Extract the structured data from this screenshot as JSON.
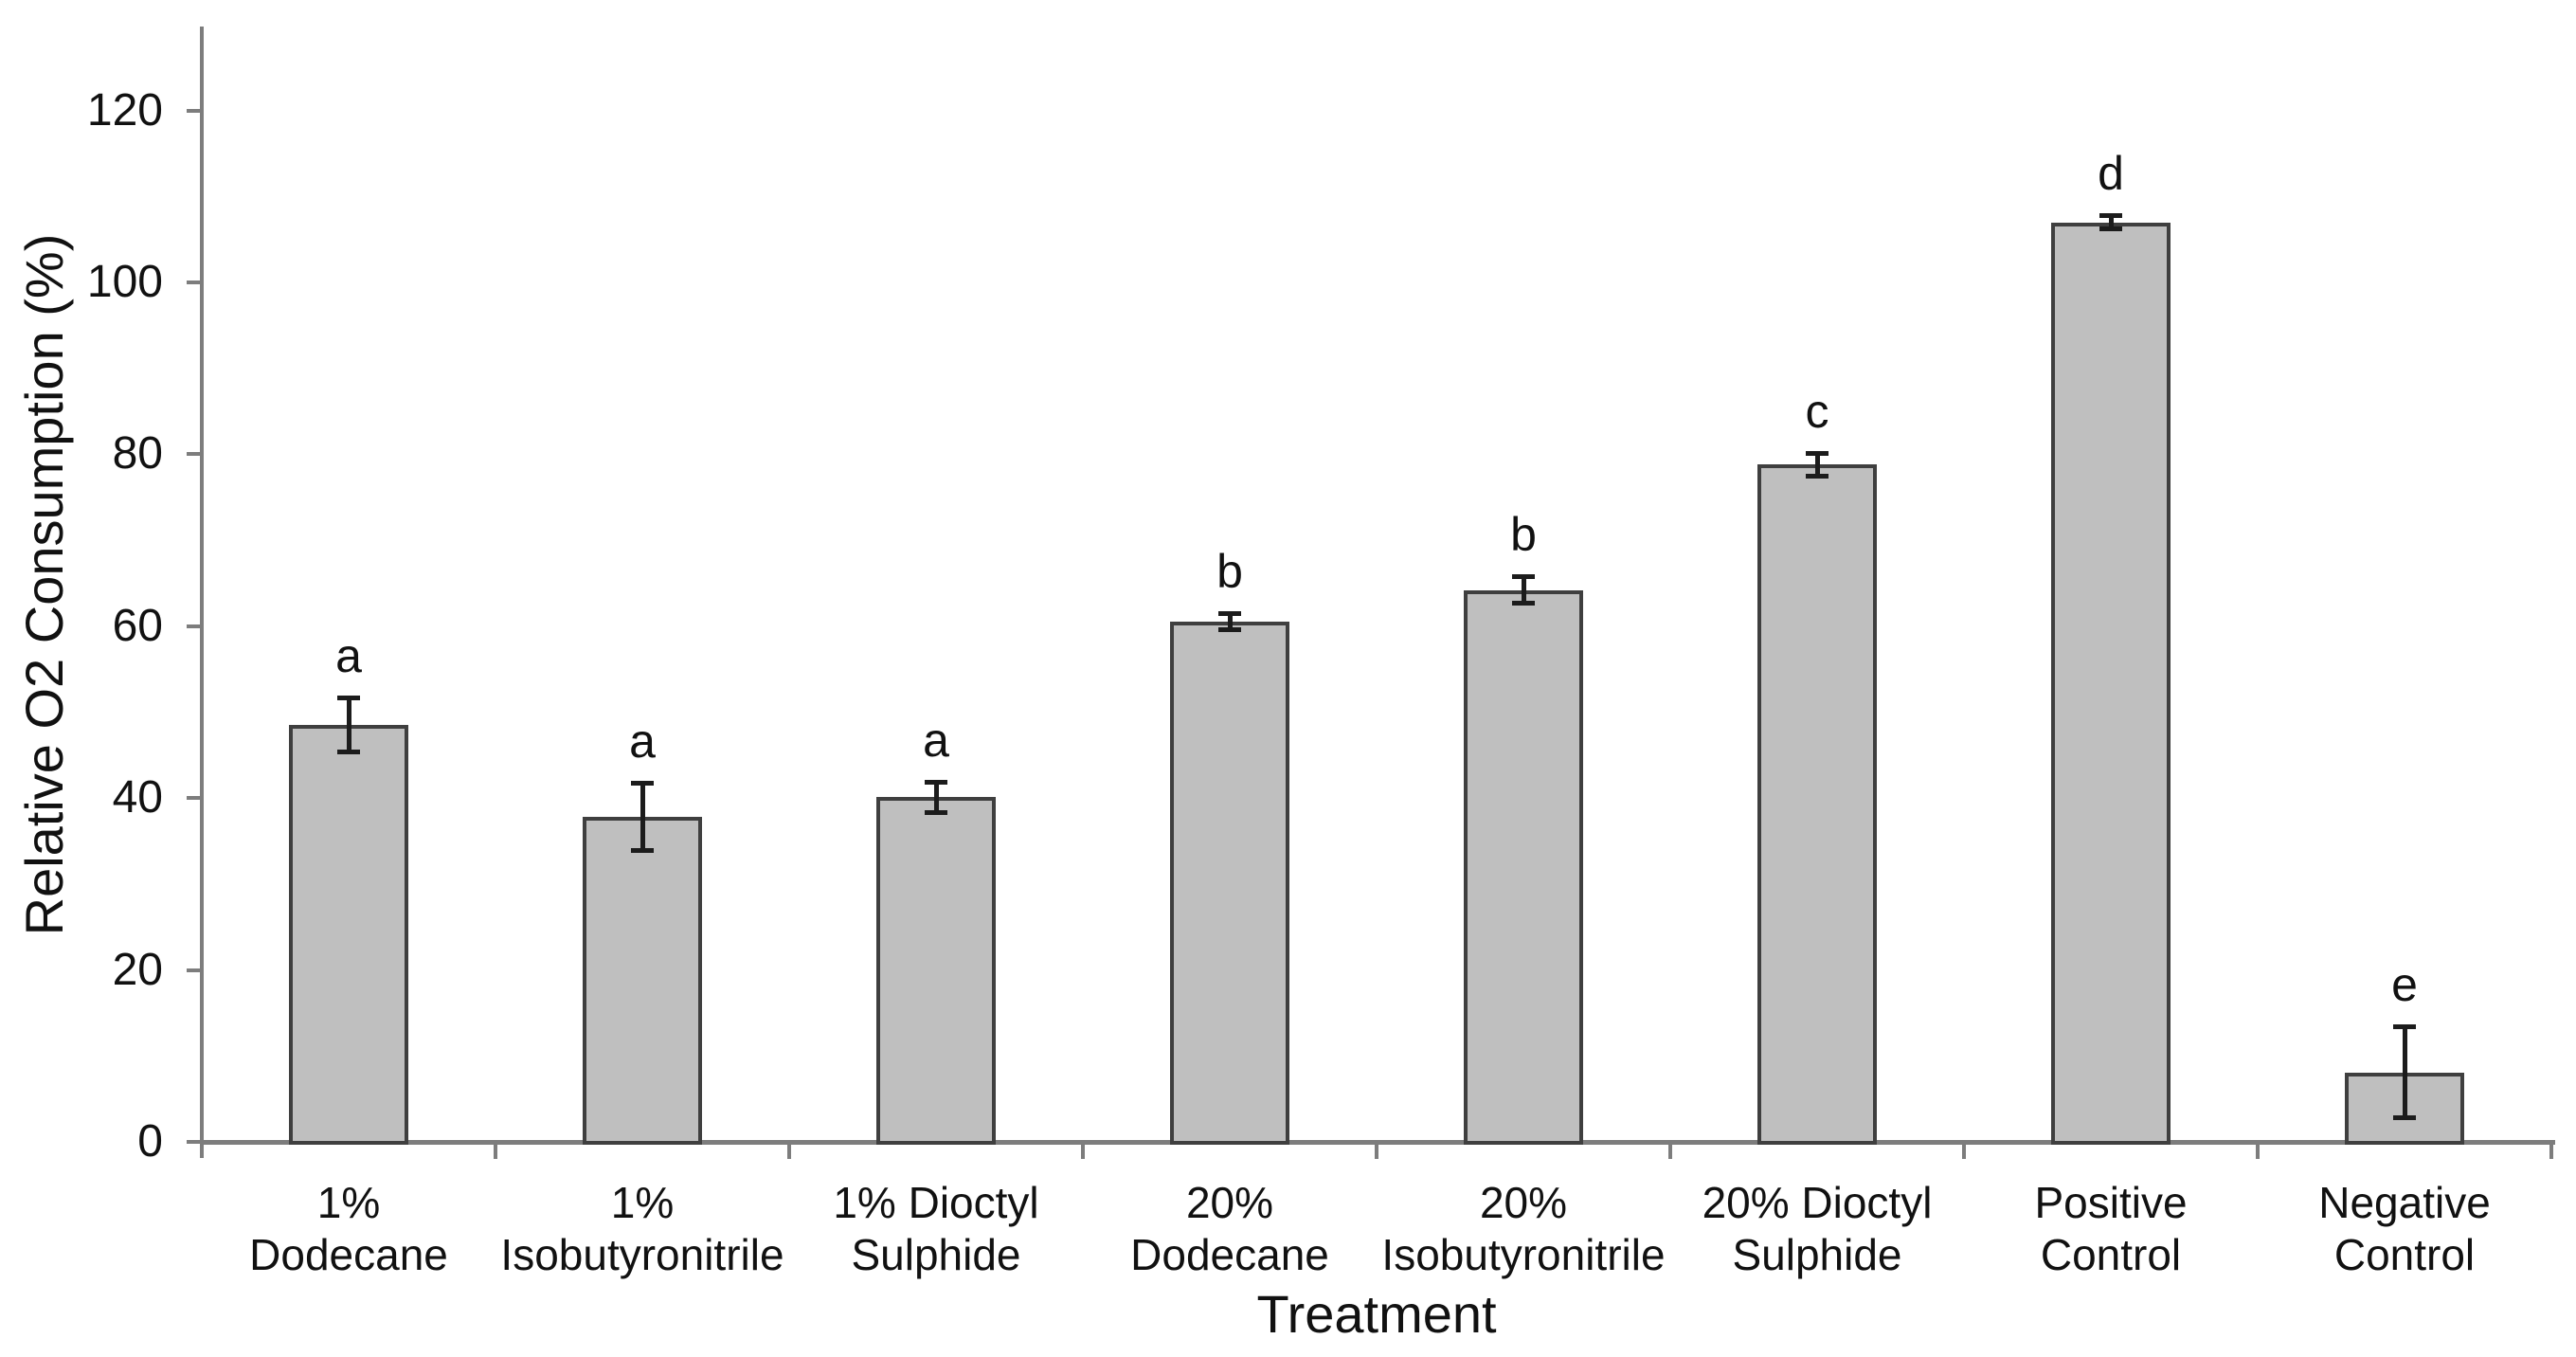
{
  "chart_data": {
    "type": "bar",
    "title": "",
    "xlabel": "Treatment",
    "ylabel": "Relative O2 Consumption (%)",
    "categories": [
      "1% Dodecane",
      "1% Isobutyronitrile",
      "1% Dioctyl Sulphide",
      "20% Dodecane",
      "20% Isobutyronitrile",
      "20% Dioctyl Sulphide",
      "Positive Control",
      "Negative Control"
    ],
    "category_label_lines": [
      [
        "1%",
        "Dodecane"
      ],
      [
        "1%",
        "Isobutyronitrile"
      ],
      [
        "1% Dioctyl",
        "Sulphide"
      ],
      [
        "20%",
        "Dodecane"
      ],
      [
        "20%",
        "Isobutyronitrile"
      ],
      [
        "20% Dioctyl",
        "Sulphide"
      ],
      [
        "Positive",
        "Control"
      ],
      [
        "Negative",
        "Control"
      ]
    ],
    "values": [
      48.5,
      37.8,
      40.1,
      60.5,
      64.2,
      78.8,
      107.0,
      8.1
    ],
    "error_bars": [
      3.2,
      4.0,
      1.8,
      1.0,
      1.6,
      1.4,
      0.8,
      5.3
    ],
    "significance_letters": [
      "a",
      "a",
      "a",
      "b",
      "b",
      "c",
      "d",
      "e"
    ],
    "y_ticks": [
      0,
      20,
      40,
      60,
      80,
      100,
      120
    ],
    "ylim": [
      0,
      130
    ],
    "grid": false,
    "legend": null,
    "bar_fill_color": "#bfbfbf",
    "bar_border_color": "#3f3f3f",
    "error_bar_color": "#1c1c1c",
    "axis_color": "#7d7d7d"
  }
}
